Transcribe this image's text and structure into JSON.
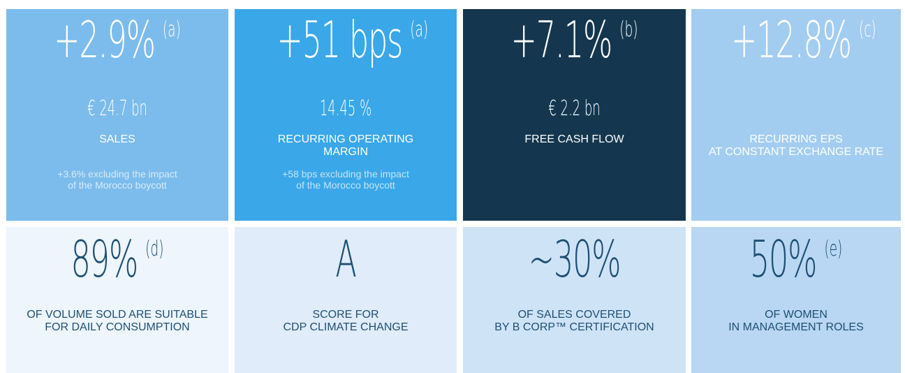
{
  "tiles": [
    {
      "big": "+2.9%",
      "note": "(a)",
      "sub": "€ 24.7 bn",
      "label": [
        "SALES"
      ],
      "extra": [
        "+3.6% excluding the impact",
        "of the Morocco boycott"
      ]
    },
    {
      "big": "+51 bps",
      "note": "(a)",
      "sub": "14.45 %",
      "label": [
        "RECURRING OPERATING",
        "MARGIN"
      ],
      "extra": [
        "+58 bps excluding the impact",
        "of the Morocco boycott"
      ]
    },
    {
      "big": "+7.1%",
      "note": "(b)",
      "sub": "€ 2.2 bn",
      "label": [
        "FREE CASH FLOW"
      ],
      "extra": []
    },
    {
      "big": "+12.8%",
      "note": "(c)",
      "label": [
        "RECURRING EPS",
        "AT CONSTANT EXCHANGE RATE"
      ],
      "extra": []
    },
    {
      "big": "89%",
      "note": "(d)",
      "label": [
        "OF VOLUME SOLD ARE SUITABLE",
        "FOR DAILY CONSUMPTION"
      ]
    },
    {
      "big": "A",
      "label": [
        "SCORE FOR",
        "CDP CLIMATE CHANGE"
      ]
    },
    {
      "big": "~30%",
      "label": [
        "OF SALES COVERED",
        "BY B CORP™ CERTIFICATION"
      ]
    },
    {
      "big": "50%",
      "note": "(e)",
      "label": [
        "OF WOMEN",
        "IN MANAGEMENT ROLES"
      ]
    }
  ]
}
